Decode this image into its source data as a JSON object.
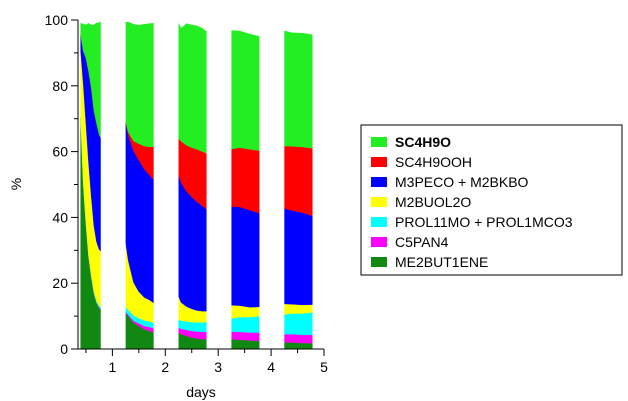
{
  "chart_data": {
    "type": "area",
    "stacked": true,
    "xlabel": "days",
    "ylabel": "%",
    "xlim": [
      0.35,
      5.0
    ],
    "ylim": [
      0,
      100
    ],
    "x_ticks": [
      1,
      2,
      3,
      4,
      5
    ],
    "y_ticks": [
      0,
      20,
      40,
      60,
      80,
      100
    ],
    "grid": false,
    "legend_position": "right",
    "night_gaps": [
      [
        0.78,
        1.25
      ],
      [
        1.78,
        2.25
      ],
      [
        2.78,
        3.25
      ],
      [
        3.78,
        4.25
      ]
    ],
    "x": [
      0.4,
      0.45,
      0.5,
      0.55,
      0.6,
      0.65,
      0.7,
      0.75,
      0.78,
      1.25,
      1.3,
      1.4,
      1.5,
      1.6,
      1.7,
      1.78,
      2.25,
      2.3,
      2.4,
      2.5,
      2.6,
      2.7,
      2.78,
      3.25,
      3.4,
      3.6,
      3.78,
      4.25,
      4.4,
      4.6,
      4.78
    ],
    "series": [
      {
        "name": "ME2BUT1ENE",
        "color": "#118811",
        "values": [
          70,
          50,
          38,
          28,
          22,
          17,
          14,
          12.5,
          12,
          11,
          10,
          8,
          7,
          6,
          5.5,
          5,
          5,
          4.5,
          4,
          3.5,
          3.2,
          3,
          3,
          3,
          2.8,
          2.6,
          2.5,
          2,
          2,
          1.8,
          1.8
        ]
      },
      {
        "name": "C5PAN4",
        "color": "#ff00ff",
        "values": [
          0,
          0,
          0,
          0,
          0,
          0,
          0.1,
          0.2,
          0.2,
          0.3,
          0.4,
          0.6,
          0.8,
          1,
          1.2,
          1.3,
          1.5,
          1.6,
          1.8,
          2,
          2.1,
          2.2,
          2.2,
          2.3,
          2.4,
          2.4,
          2.5,
          2.5,
          2.5,
          2.5,
          2.5
        ]
      },
      {
        "name": "PROL11MO + PROL1MCO3",
        "color": "#00ffff",
        "values": [
          0.5,
          0.5,
          0.5,
          0.5,
          0.5,
          0.5,
          0.5,
          0.5,
          0.5,
          1.5,
          1.5,
          1.6,
          1.6,
          1.7,
          1.7,
          1.7,
          2.5,
          2.5,
          2.6,
          2.7,
          2.8,
          2.9,
          3,
          4,
          4.5,
          4.7,
          5,
          6,
          6.3,
          6.5,
          6.8
        ]
      },
      {
        "name": "M2BUOL2O",
        "color": "#ffff00",
        "values": [
          20,
          30,
          30,
          28,
          24,
          20,
          18,
          17,
          17,
          19.5,
          15,
          10,
          8,
          7,
          6.5,
          6,
          7,
          5.5,
          4.5,
          4,
          3.6,
          3.4,
          3.3,
          4,
          3.5,
          3,
          2.8,
          3.2,
          2.8,
          2.6,
          2.4
        ]
      },
      {
        "name": "M3PECO + M2BKBO",
        "color": "#0000ff",
        "values": [
          5,
          10,
          20,
          28,
          33,
          35,
          36,
          35,
          34.5,
          37,
          38,
          40,
          40,
          39,
          38,
          37.5,
          37,
          36.5,
          35,
          34,
          33,
          32,
          31,
          30,
          30,
          29.5,
          28.5,
          29,
          28.5,
          28,
          27
        ]
      },
      {
        "name": "SC4H9OOH",
        "color": "#ff0000",
        "values": [
          0,
          0,
          0,
          0,
          0,
          0,
          0,
          0,
          0,
          0,
          1,
          3,
          5,
          7,
          8.5,
          10,
          11,
          12.5,
          14,
          15,
          16,
          16.5,
          17,
          17.5,
          18,
          18.5,
          19,
          19,
          19.5,
          20,
          20.5
        ]
      },
      {
        "name": "SC4H9O",
        "color": "#22ee22",
        "values": [
          3.5,
          8.3,
          10,
          14.5,
          19,
          26,
          30.5,
          34,
          35.3,
          30,
          33.5,
          35.5,
          36,
          37,
          37.5,
          37.5,
          35,
          34.4,
          37,
          37.3,
          37.5,
          37.5,
          37,
          36,
          35.5,
          35,
          34.7,
          35,
          34.5,
          34.6,
          34.5
        ]
      }
    ],
    "legend_order": [
      "SC4H9O",
      "SC4H9OOH",
      "M3PECO + M2BKBO",
      "M2BUOL2O",
      "PROL11MO + PROL1MCO3",
      "C5PAN4",
      "ME2BUT1ENE"
    ],
    "legend_bold": "SC4H9O"
  }
}
